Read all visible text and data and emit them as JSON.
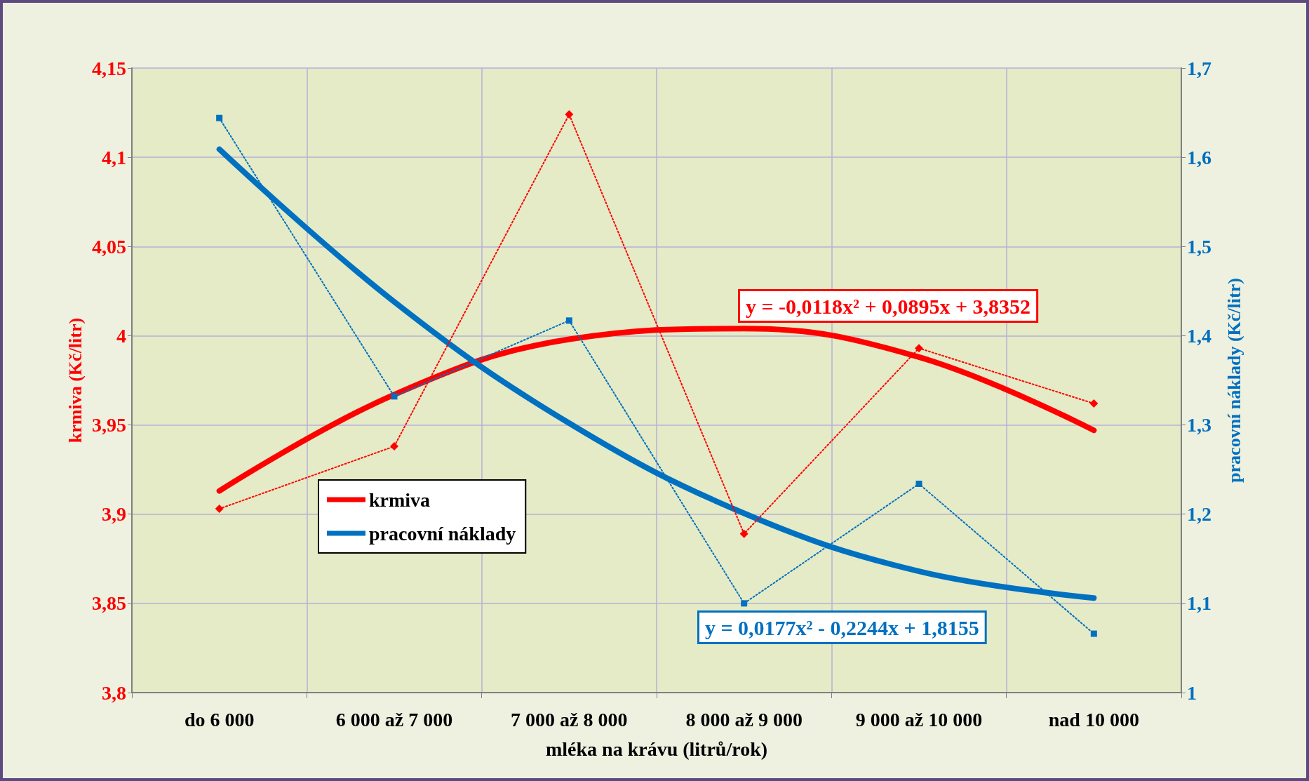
{
  "chart_data": {
    "type": "line",
    "xlabel": "mléka na krávu (litrů/rok)",
    "ylabel": "krmiva (Kč/litr)",
    "y2label": "pracovní náklady (Kč/litr)",
    "categories": [
      "do 6 000",
      "6 000 až 7 000",
      "7 000 až 8 000",
      "8 000 až 9 000",
      "9 000 až 10 000",
      "nad 10 000"
    ],
    "series": [
      {
        "color": "#ff0000",
        "values": [
          3.903,
          3.938,
          4.124,
          3.889,
          3.993,
          3.962
        ],
        "marker": "diamond",
        "line_style": "dotted"
      },
      {
        "color": "#0070c0",
        "values": [
          1.644,
          1.332,
          1.417,
          1.1,
          1.234,
          1.066
        ],
        "axis": "y2",
        "marker": "square",
        "line_style": "dotted"
      },
      {
        "name": "krmiva",
        "color": "#ff0000",
        "values": [
          3.913,
          3.967,
          3.998,
          4.004,
          3.988,
          3.947
        ],
        "marker": "none",
        "line_style": "solid"
      },
      {
        "name": "pracovní náklady",
        "color": "#0070c0",
        "values": [
          1.609,
          1.438,
          1.302,
          1.201,
          1.136,
          1.106
        ],
        "axis": "y2",
        "marker": "none",
        "line_style": "solid"
      }
    ],
    "ylim": [
      3.8,
      4.15
    ],
    "yticks": [
      {
        "value": 3.8,
        "label": "3,8"
      },
      {
        "value": 3.85,
        "label": "3,85"
      },
      {
        "value": 3.9,
        "label": "3,9"
      },
      {
        "value": 3.95,
        "label": "3,95"
      },
      {
        "value": 4,
        "label": "4"
      },
      {
        "value": 4.05,
        "label": "4,05"
      },
      {
        "value": 4.1,
        "label": "4,1"
      },
      {
        "value": 4.15,
        "label": "4,15"
      }
    ],
    "y2lim": [
      1,
      1.7
    ],
    "y2ticks": [
      {
        "value": 1,
        "label": "1"
      },
      {
        "value": 1.1,
        "label": "1,1"
      },
      {
        "value": 1.2,
        "label": "1,2"
      },
      {
        "value": 1.3,
        "label": "1,3"
      },
      {
        "value": 1.4,
        "label": "1,4"
      },
      {
        "value": 1.5,
        "label": "1,5"
      },
      {
        "value": 1.6,
        "label": "1,6"
      },
      {
        "value": 1.7,
        "label": "1,7"
      }
    ],
    "annotations": [
      "y = -0,0118x² + 0,0895x + 3,8352",
      "y = 0,0177x² - 0,2244x + 1,8155"
    ],
    "grid": true,
    "legend": "left"
  }
}
